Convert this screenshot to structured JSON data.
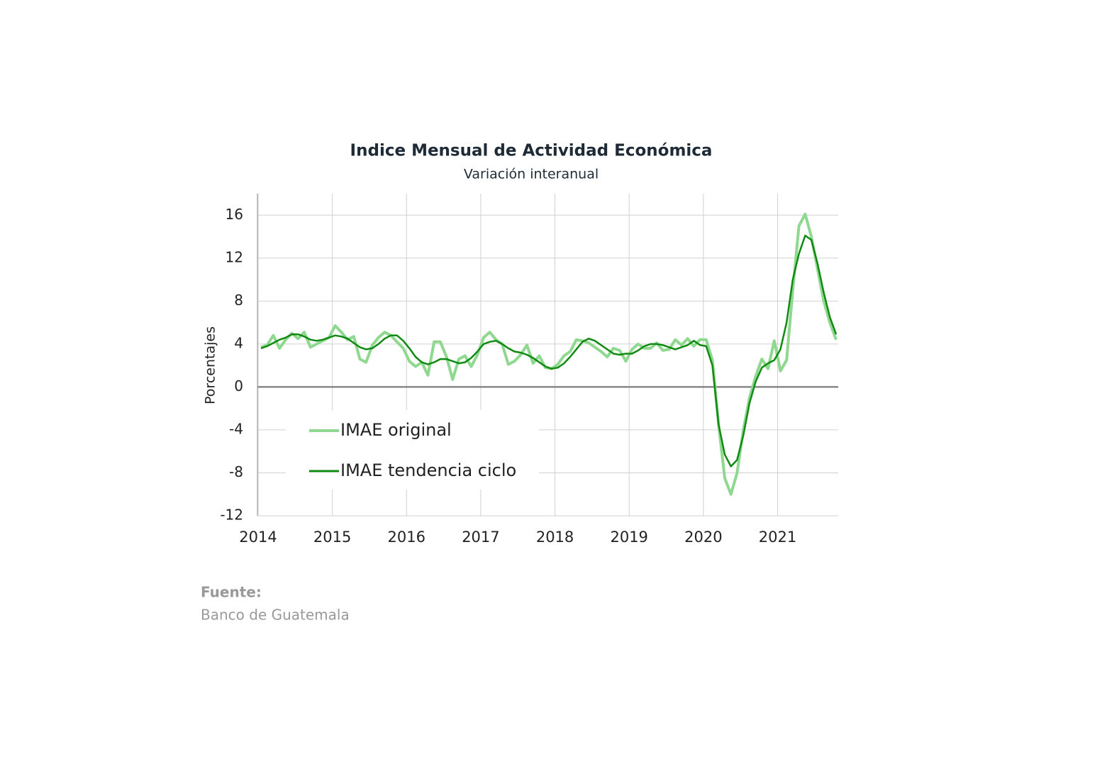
{
  "chart_data": {
    "type": "line",
    "title": "Indice Mensual de Actividad Económica",
    "subtitle": "Variación interanual",
    "y_label": "Porcentajes",
    "source_label": "Fuente:",
    "source": "Banco de Guatemala",
    "categories": [
      "2014",
      null,
      null,
      null,
      null,
      null,
      null,
      null,
      null,
      null,
      null,
      null,
      "2015",
      null,
      null,
      null,
      null,
      null,
      null,
      null,
      null,
      null,
      null,
      null,
      "2016",
      null,
      null,
      null,
      null,
      null,
      null,
      null,
      null,
      null,
      null,
      null,
      "2017",
      null,
      null,
      null,
      null,
      null,
      null,
      null,
      null,
      null,
      null,
      null,
      "2018",
      null,
      null,
      null,
      null,
      null,
      null,
      null,
      null,
      null,
      null,
      null,
      "2019",
      null,
      null,
      null,
      null,
      null,
      null,
      null,
      null,
      null,
      null,
      null,
      "2020",
      null,
      null,
      null,
      null,
      null,
      null,
      null,
      null,
      null,
      null,
      null,
      "2021",
      null,
      null,
      null,
      null,
      null,
      null,
      null,
      null,
      null
    ],
    "series": [
      {
        "name": "IMAE original",
        "color": "#8fd88f",
        "values": [
          3.7,
          3.9,
          4.8,
          3.6,
          4.4,
          5.0,
          4.5,
          5.1,
          3.7,
          4.0,
          4.3,
          4.6,
          5.7,
          5.1,
          4.4,
          4.7,
          2.6,
          2.3,
          3.9,
          4.6,
          5.1,
          4.8,
          4.2,
          3.6,
          2.4,
          1.9,
          2.3,
          1.1,
          4.2,
          4.2,
          2.8,
          0.7,
          2.6,
          2.9,
          1.9,
          3.0,
          4.6,
          5.1,
          4.4,
          4.0,
          2.1,
          2.4,
          3.0,
          3.9,
          2.2,
          2.9,
          1.8,
          1.7,
          2.1,
          2.9,
          3.3,
          4.4,
          4.3,
          4.1,
          3.7,
          3.3,
          2.8,
          3.6,
          3.4,
          2.4,
          3.5,
          4.0,
          3.6,
          3.6,
          4.1,
          3.4,
          3.5,
          4.4,
          3.9,
          4.5,
          3.8,
          4.4,
          4.4,
          2.5,
          -3.5,
          -8.5,
          -10.0,
          -8.0,
          -4.0,
          -1.0,
          1.0,
          2.6,
          1.7,
          4.3,
          1.5,
          2.5,
          9.0,
          15.0,
          16.1,
          14.0,
          11.0,
          8.0,
          6.0,
          4.4
        ]
      },
      {
        "name": "IMAE tendencia ciclo",
        "color": "#118a11",
        "values": [
          3.6,
          3.8,
          4.1,
          4.4,
          4.6,
          4.9,
          4.9,
          4.7,
          4.4,
          4.3,
          4.4,
          4.6,
          4.8,
          4.7,
          4.5,
          4.1,
          3.7,
          3.5,
          3.6,
          4.0,
          4.5,
          4.8,
          4.8,
          4.3,
          3.6,
          2.8,
          2.3,
          2.1,
          2.3,
          2.6,
          2.6,
          2.4,
          2.2,
          2.3,
          2.7,
          3.3,
          4.0,
          4.2,
          4.3,
          4.0,
          3.6,
          3.3,
          3.2,
          3.0,
          2.7,
          2.3,
          1.9,
          1.7,
          1.8,
          2.2,
          2.8,
          3.5,
          4.2,
          4.5,
          4.3,
          3.9,
          3.5,
          3.1,
          3.0,
          3.1,
          3.1,
          3.4,
          3.8,
          4.0,
          4.0,
          3.9,
          3.7,
          3.5,
          3.7,
          3.9,
          4.3,
          3.9,
          3.8,
          2.0,
          -3.5,
          -6.3,
          -7.4,
          -6.8,
          -4.5,
          -1.5,
          0.5,
          1.8,
          2.2,
          2.5,
          3.5,
          6.0,
          10.0,
          12.4,
          14.1,
          13.7,
          11.5,
          8.8,
          6.5,
          4.9
        ]
      }
    ],
    "ylim": [
      -12,
      18
    ],
    "yticks": [
      -12,
      -8,
      -4,
      0,
      4,
      8,
      12,
      16
    ],
    "grid": true,
    "legend": "lower left"
  }
}
